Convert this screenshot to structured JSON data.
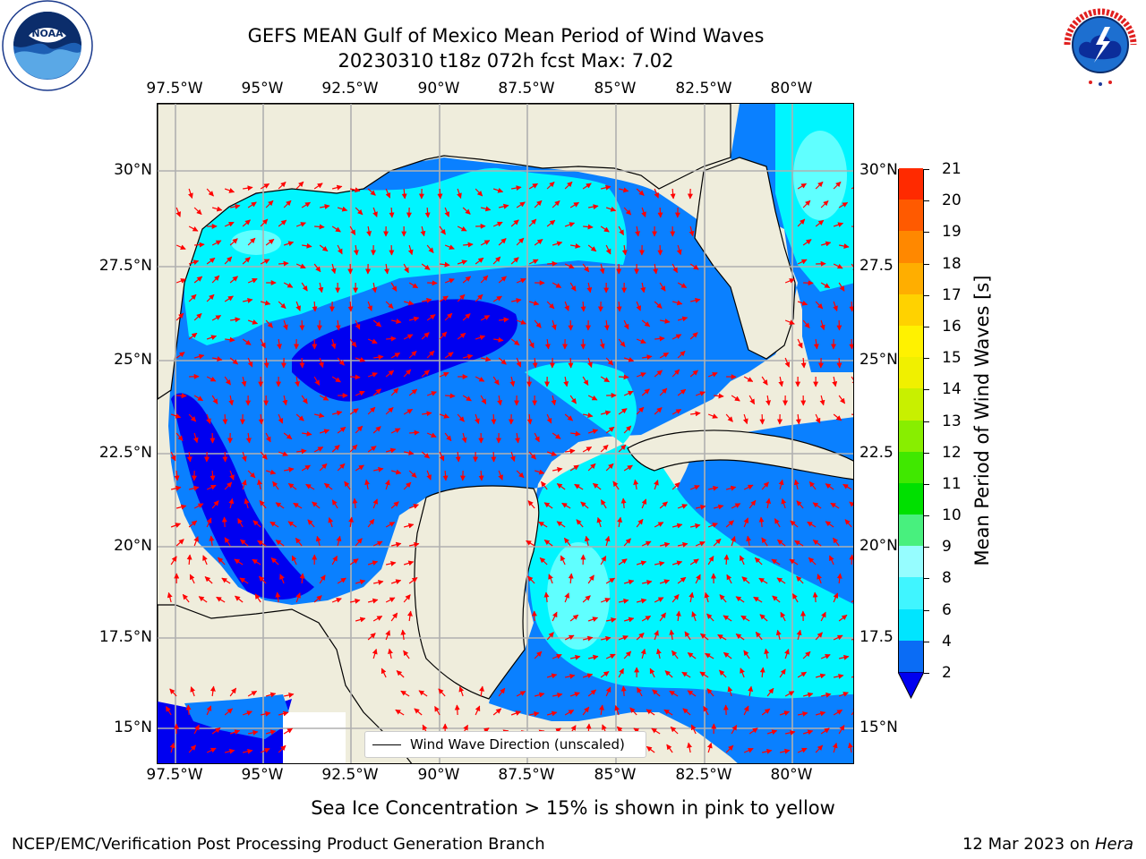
{
  "title_line1": "GEFS MEAN Gulf of Mexico Mean Period of Wind Waves",
  "title_line2": "20230310 t18z 072h fcst   Max: 7.02",
  "logos": {
    "left": "NOAA",
    "right": "NATIONAL WEATHER SERVICE"
  },
  "lon_labels": [
    "97.5°W",
    "95°W",
    "92.5°W",
    "90°W",
    "87.5°W",
    "85°W",
    "82.5°W",
    "80°W"
  ],
  "lat_labels_left": [
    "30°N",
    "27.5°N",
    "25°N",
    "22.5°N",
    "20°N",
    "17.5°N",
    "15°N"
  ],
  "lat_labels_right": [
    "30°N",
    "27.5",
    "25°N",
    "22.5",
    "20°N",
    "17.5",
    "15°N"
  ],
  "legend": {
    "label": "Wind Wave Direction (unscaled)"
  },
  "colorbar": {
    "label": "Mean Period of Wind Waves [s]",
    "ticks": [
      "2",
      "4",
      "6",
      "8",
      "9",
      "10",
      "11",
      "12",
      "13",
      "14",
      "15",
      "16",
      "17",
      "18",
      "19",
      "20",
      "21"
    ],
    "colors": [
      "#0a6cf5",
      "#00e5ff",
      "#40f5ff",
      "#96fdff",
      "#48f07e",
      "#00e000",
      "#40e800",
      "#88ee00",
      "#c8f000",
      "#f0f000",
      "#fff200",
      "#ffd200",
      "#ffae00",
      "#ff8800",
      "#ff5a00",
      "#ff2a00",
      "#ff0000"
    ],
    "extend_color": "#0000f0"
  },
  "map_colors": {
    "land": "#efeddc",
    "level_2_4": "#0a80ff",
    "level_0_2": "#0000f0",
    "level_4_6": "#00f5ff",
    "level_6_8": "#60ffff",
    "arrows": "#ff0000",
    "grid": "#b0b0b0"
  },
  "ice_note": "Sea Ice Concentration > 15% is shown in pink to yellow",
  "footer_left": "NCEP/EMC/Verification Post Processing Product Generation Branch",
  "footer_right_date": "12 Mar 2023 on ",
  "footer_right_machine": "Hera"
}
